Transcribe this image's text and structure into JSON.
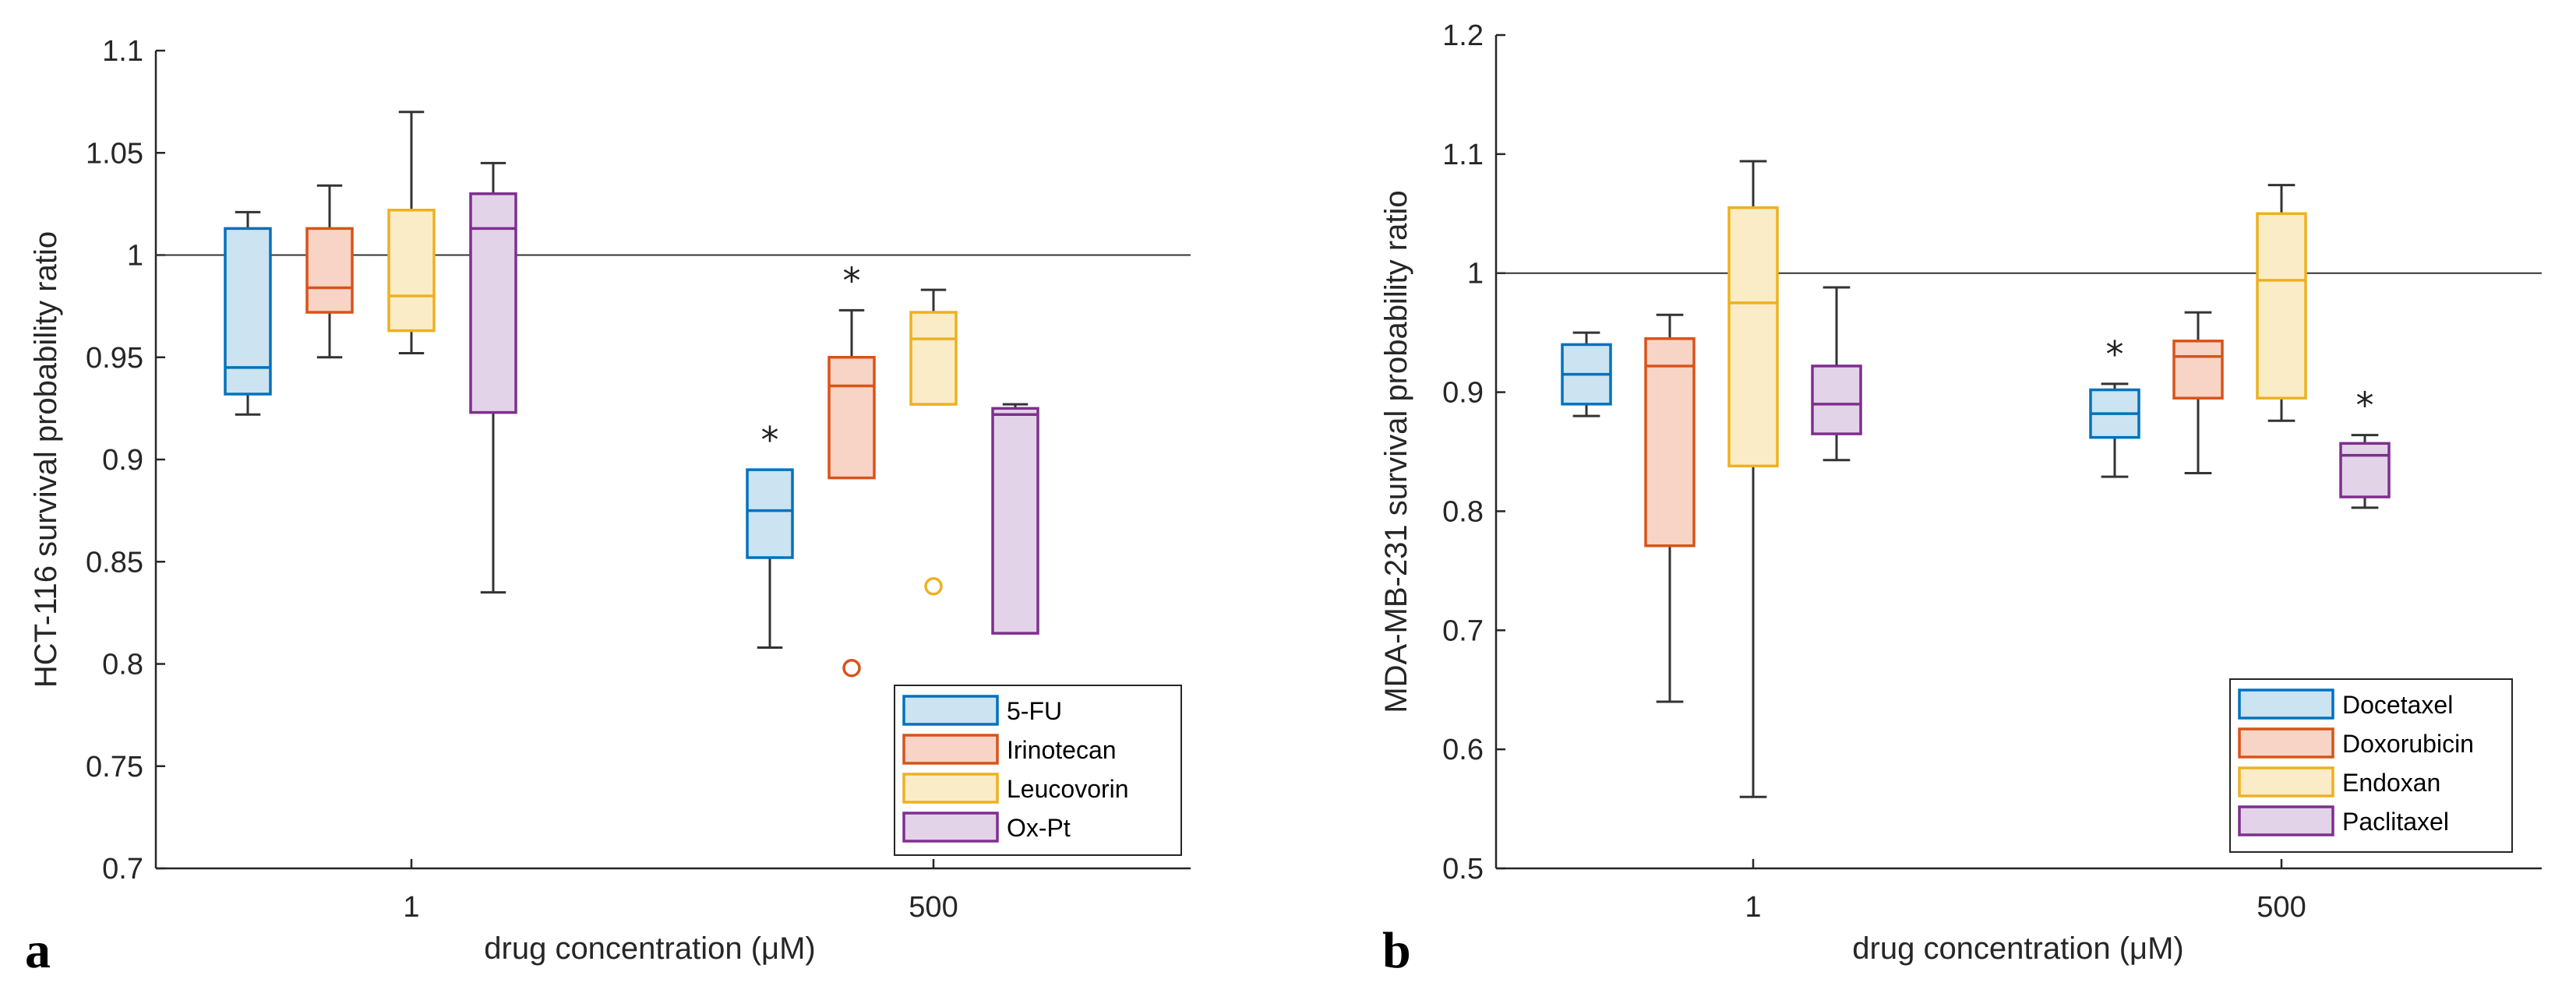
{
  "chart_data": [
    {
      "type": "box",
      "panel_label": "a",
      "title": "",
      "xlabel": "drug concentration (μM)",
      "ylabel": "HCT-116 survival probability ratio",
      "ylim": [
        0.7,
        1.1
      ],
      "yticks": [
        0.7,
        0.75,
        0.8,
        0.85,
        0.9,
        0.95,
        1,
        1.05,
        1.1
      ],
      "ytick_labels": [
        "0.7",
        "0.75",
        "0.8",
        "0.85",
        "0.9",
        "0.95",
        "1",
        "1.05",
        "1.1"
      ],
      "categories": [
        "1",
        "500"
      ],
      "reference_line": 1,
      "legend_position": "bottom-right",
      "series": [
        {
          "name": "5-FU",
          "color": "#0072BD",
          "fill": "#cce3f2",
          "boxes": [
            {
              "category": "1",
              "whisker_low": 0.922,
              "q1": 0.932,
              "median": 0.945,
              "q3": 1.013,
              "whisker_high": 1.021,
              "outliers": [],
              "significant": false
            },
            {
              "category": "500",
              "whisker_low": 0.808,
              "q1": 0.852,
              "median": 0.875,
              "q3": 0.895,
              "whisker_high": 0.895,
              "outliers": [],
              "significant": true
            }
          ]
        },
        {
          "name": "Irinotecan",
          "color": "#D95319",
          "fill": "#f7d4c6",
          "boxes": [
            {
              "category": "1",
              "whisker_low": 0.95,
              "q1": 0.972,
              "median": 0.984,
              "q3": 1.013,
              "whisker_high": 1.034,
              "outliers": [],
              "significant": false
            },
            {
              "category": "500",
              "whisker_low": 0.891,
              "q1": 0.891,
              "median": 0.936,
              "q3": 0.95,
              "whisker_high": 0.973,
              "outliers": [
                0.798
              ],
              "significant": true
            }
          ]
        },
        {
          "name": "Leucovorin",
          "color": "#EDB120",
          "fill": "#fbecc8",
          "boxes": [
            {
              "category": "1",
              "whisker_low": 0.952,
              "q1": 0.963,
              "median": 0.98,
              "q3": 1.022,
              "whisker_high": 1.07,
              "outliers": [],
              "significant": false
            },
            {
              "category": "500",
              "whisker_low": 0.927,
              "q1": 0.927,
              "median": 0.959,
              "q3": 0.972,
              "whisker_high": 0.983,
              "outliers": [
                0.838
              ],
              "significant": false
            }
          ]
        },
        {
          "name": "Ox-Pt",
          "color": "#7E2F8E",
          "fill": "#e3d3e8",
          "boxes": [
            {
              "category": "1",
              "whisker_low": 0.835,
              "q1": 0.923,
              "median": 1.013,
              "q3": 1.03,
              "whisker_high": 1.045,
              "outliers": [],
              "significant": false
            },
            {
              "category": "500",
              "whisker_low": 0.815,
              "q1": 0.815,
              "median": 0.922,
              "q3": 0.925,
              "whisker_high": 0.927,
              "outliers": [],
              "significant": false
            }
          ]
        }
      ]
    },
    {
      "type": "box",
      "panel_label": "b",
      "title": "",
      "xlabel": "drug concentration (μM)",
      "ylabel": "MDA-MB-231 survival probability ratio",
      "ylim": [
        0.5,
        1.2
      ],
      "yticks": [
        0.5,
        0.6,
        0.7,
        0.8,
        0.9,
        1,
        1.1,
        1.2
      ],
      "ytick_labels": [
        "0.5",
        "0.6",
        "0.7",
        "0.8",
        "0.9",
        "1",
        "1.1",
        "1.2"
      ],
      "categories": [
        "1",
        "500"
      ],
      "reference_line": 1,
      "legend_position": "bottom-right",
      "series": [
        {
          "name": "Docetaxel",
          "color": "#0072BD",
          "fill": "#cce3f2",
          "boxes": [
            {
              "category": "1",
              "whisker_low": 0.88,
              "q1": 0.89,
              "median": 0.915,
              "q3": 0.94,
              "whisker_high": 0.95,
              "outliers": [],
              "significant": false
            },
            {
              "category": "500",
              "whisker_low": 0.829,
              "q1": 0.862,
              "median": 0.882,
              "q3": 0.902,
              "whisker_high": 0.907,
              "outliers": [],
              "significant": true
            }
          ]
        },
        {
          "name": "Doxorubicin",
          "color": "#D95319",
          "fill": "#f7d4c6",
          "boxes": [
            {
              "category": "1",
              "whisker_low": 0.64,
              "q1": 0.771,
              "median": 0.922,
              "q3": 0.945,
              "whisker_high": 0.965,
              "outliers": [],
              "significant": false
            },
            {
              "category": "500",
              "whisker_low": 0.832,
              "q1": 0.895,
              "median": 0.93,
              "q3": 0.943,
              "whisker_high": 0.967,
              "outliers": [],
              "significant": false
            }
          ]
        },
        {
          "name": "Endoxan",
          "color": "#EDB120",
          "fill": "#fbecc8",
          "boxes": [
            {
              "category": "1",
              "whisker_low": 0.56,
              "q1": 0.838,
              "median": 0.975,
              "q3": 1.055,
              "whisker_high": 1.094,
              "outliers": [],
              "significant": false
            },
            {
              "category": "500",
              "whisker_low": 0.876,
              "q1": 0.895,
              "median": 0.994,
              "q3": 1.05,
              "whisker_high": 1.074,
              "outliers": [],
              "significant": false
            }
          ]
        },
        {
          "name": "Paclitaxel",
          "color": "#7E2F8E",
          "fill": "#e3d3e8",
          "boxes": [
            {
              "category": "1",
              "whisker_low": 0.843,
              "q1": 0.865,
              "median": 0.89,
              "q3": 0.922,
              "whisker_high": 0.988,
              "outliers": [],
              "significant": false
            },
            {
              "category": "500",
              "whisker_low": 0.803,
              "q1": 0.812,
              "median": 0.847,
              "q3": 0.857,
              "whisker_high": 0.864,
              "outliers": [],
              "significant": true
            }
          ]
        }
      ]
    }
  ]
}
